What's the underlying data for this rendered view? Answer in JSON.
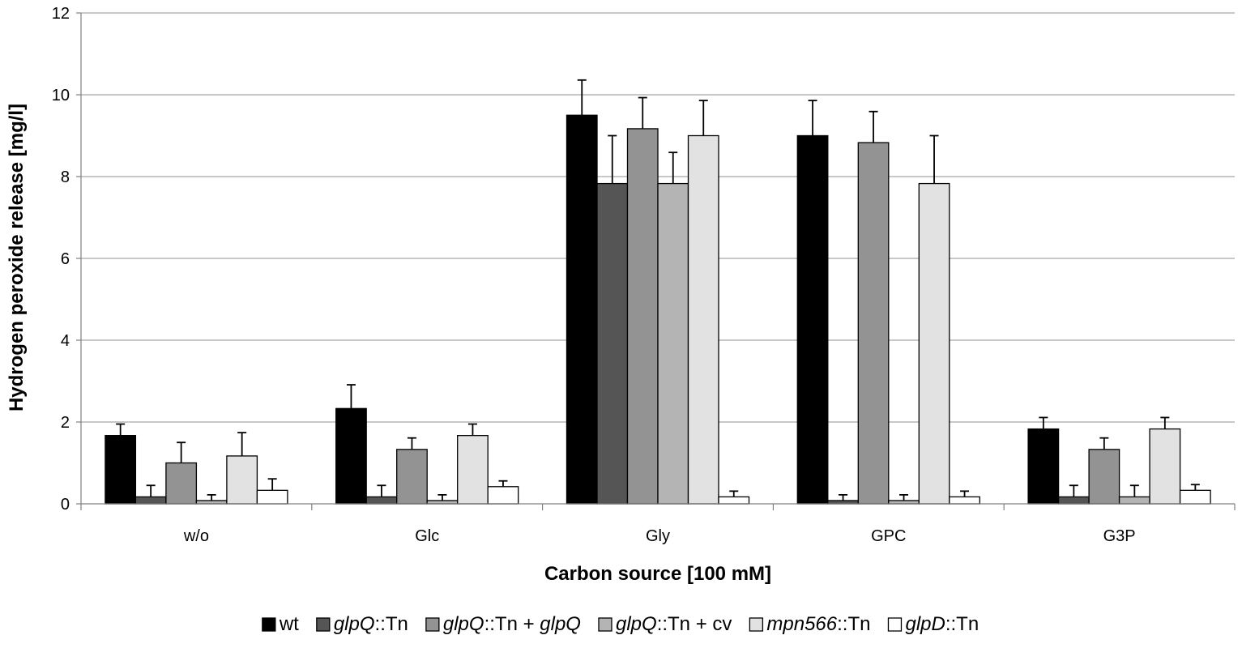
{
  "chart_data": {
    "type": "bar",
    "title": "",
    "xlabel": "Carbon source [100 mM]",
    "ylabel": "Hydrogen peroxide release [mg/l]",
    "ylim": [
      0,
      12
    ],
    "yticks": [
      "0",
      "2",
      "4",
      "6",
      "8",
      "10",
      "12"
    ],
    "grid": true,
    "legend_position": "bottom",
    "categories": [
      "w/o",
      "Glc",
      "Gly",
      "GPC",
      "G3P"
    ],
    "series": [
      {
        "name": "wt",
        "legend_parts": [
          {
            "text": "wt",
            "italic": false
          }
        ],
        "color": "#000000",
        "values": [
          1.67,
          2.33,
          9.5,
          9.0,
          1.83
        ],
        "errors": [
          0.28,
          0.58,
          0.86,
          0.86,
          0.28
        ]
      },
      {
        "name": "glpQ::Tn",
        "legend_parts": [
          {
            "text": "glpQ",
            "italic": true
          },
          {
            "text": "::Tn",
            "italic": false
          }
        ],
        "color": "#555555",
        "values": [
          0.17,
          0.17,
          7.83,
          0.08,
          0.17
        ],
        "errors": [
          0.28,
          0.28,
          1.17,
          0.14,
          0.28
        ]
      },
      {
        "name": "glpQ::Tn + glpQ",
        "legend_parts": [
          {
            "text": "glpQ",
            "italic": true
          },
          {
            "text": "::Tn + ",
            "italic": false
          },
          {
            "text": "glpQ",
            "italic": true
          }
        ],
        "color": "#939393",
        "values": [
          1.0,
          1.33,
          9.17,
          8.83,
          1.33
        ],
        "errors": [
          0.5,
          0.28,
          0.76,
          0.76,
          0.28
        ]
      },
      {
        "name": "glpQ::Tn + cv",
        "legend_parts": [
          {
            "text": "glpQ",
            "italic": true
          },
          {
            "text": "::Tn + cv",
            "italic": false
          }
        ],
        "color": "#b4b4b4",
        "values": [
          0.08,
          0.08,
          7.83,
          0.08,
          0.17
        ],
        "errors": [
          0.14,
          0.14,
          0.76,
          0.14,
          0.28
        ]
      },
      {
        "name": "mpn566::Tn",
        "legend_parts": [
          {
            "text": "mpn566",
            "italic": true
          },
          {
            "text": "::Tn",
            "italic": false
          }
        ],
        "color": "#e2e2e2",
        "values": [
          1.17,
          1.67,
          9.0,
          7.83,
          1.83
        ],
        "errors": [
          0.57,
          0.28,
          0.86,
          1.17,
          0.28
        ]
      },
      {
        "name": "glpD::Tn",
        "legend_parts": [
          {
            "text": "glpD",
            "italic": true
          },
          {
            "text": "::Tn",
            "italic": false
          }
        ],
        "color": "#ffffff",
        "values": [
          0.33,
          0.42,
          0.17,
          0.17,
          0.33
        ],
        "errors": [
          0.28,
          0.14,
          0.14,
          0.14,
          0.14
        ]
      }
    ]
  }
}
